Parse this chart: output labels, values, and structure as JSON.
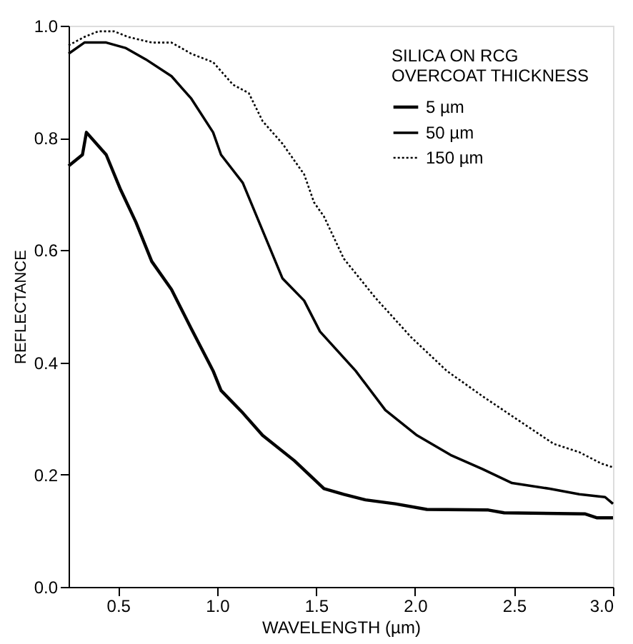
{
  "chart_data": {
    "type": "line",
    "xlabel": "WAVELENGTH (µm)",
    "ylabel": "REFLECTANCE",
    "legend_title": "SILICA ON RCG\nOVERCOAT THICKNESS",
    "xlim": [
      0.25,
      3.0
    ],
    "ylim": [
      0,
      1.0
    ],
    "xticks": [
      0.5,
      {
        "value": 1,
        "label": "1.0"
      },
      1.5,
      {
        "value": 2,
        "label": "2.0"
      },
      2.5,
      {
        "value": 3,
        "label": "3.0"
      }
    ],
    "yticks": [
      {
        "value": 0,
        "label": "0.0"
      },
      0.2,
      0.4,
      0.6,
      0.8,
      {
        "value": 1,
        "label": "1.0"
      }
    ],
    "grid": false,
    "legend": "top right",
    "marker": "none",
    "series": [
      {
        "name": "5 µm",
        "color": "#000000",
        "line_style": "solid",
        "x": [
          0.25,
          0.32,
          0.34,
          0.44,
          0.51,
          0.59,
          0.67,
          0.77,
          0.87,
          0.98,
          1.02,
          1.13,
          1.23,
          1.39,
          1.54,
          1.64,
          1.75,
          1.9,
          2.06,
          2.37,
          2.45,
          2.86,
          2.92,
          3.0
        ],
        "values": [
          0.75,
          0.77,
          0.81,
          0.77,
          0.71,
          0.65,
          0.58,
          0.53,
          0.46,
          0.385,
          0.35,
          0.31,
          0.27,
          0.225,
          0.175,
          0.165,
          0.155,
          0.148,
          0.138,
          0.137,
          0.132,
          0.13,
          0.123,
          0.123
        ]
      },
      {
        "name": "50 µm",
        "color": "#000000",
        "line_style": "solid",
        "x": [
          0.25,
          0.33,
          0.44,
          0.54,
          0.64,
          0.77,
          0.87,
          0.98,
          1.02,
          1.13,
          1.23,
          1.33,
          1.44,
          1.52,
          1.7,
          1.85,
          2.01,
          2.18,
          2.34,
          2.49,
          2.68,
          2.83,
          2.96,
          3.0
        ],
        "values": [
          0.95,
          0.97,
          0.97,
          0.96,
          0.94,
          0.91,
          0.87,
          0.81,
          0.77,
          0.72,
          0.635,
          0.55,
          0.51,
          0.455,
          0.385,
          0.315,
          0.27,
          0.235,
          0.21,
          0.185,
          0.175,
          0.165,
          0.16,
          0.148
        ]
      },
      {
        "name": "150 µm",
        "color": "#000000",
        "line_style": "dotted",
        "x": [
          0.25,
          0.33,
          0.4,
          0.48,
          0.55,
          0.67,
          0.77,
          0.87,
          0.98,
          1.08,
          1.16,
          1.23,
          1.33,
          1.44,
          1.49,
          1.54,
          1.64,
          1.8,
          1.98,
          2.16,
          2.34,
          2.53,
          2.7,
          2.83,
          2.94,
          3.0
        ],
        "values": [
          0.965,
          0.98,
          0.99,
          0.99,
          0.98,
          0.97,
          0.97,
          0.95,
          0.935,
          0.895,
          0.88,
          0.83,
          0.79,
          0.735,
          0.685,
          0.66,
          0.585,
          0.515,
          0.445,
          0.385,
          0.34,
          0.295,
          0.255,
          0.24,
          0.22,
          0.213
        ]
      }
    ]
  }
}
